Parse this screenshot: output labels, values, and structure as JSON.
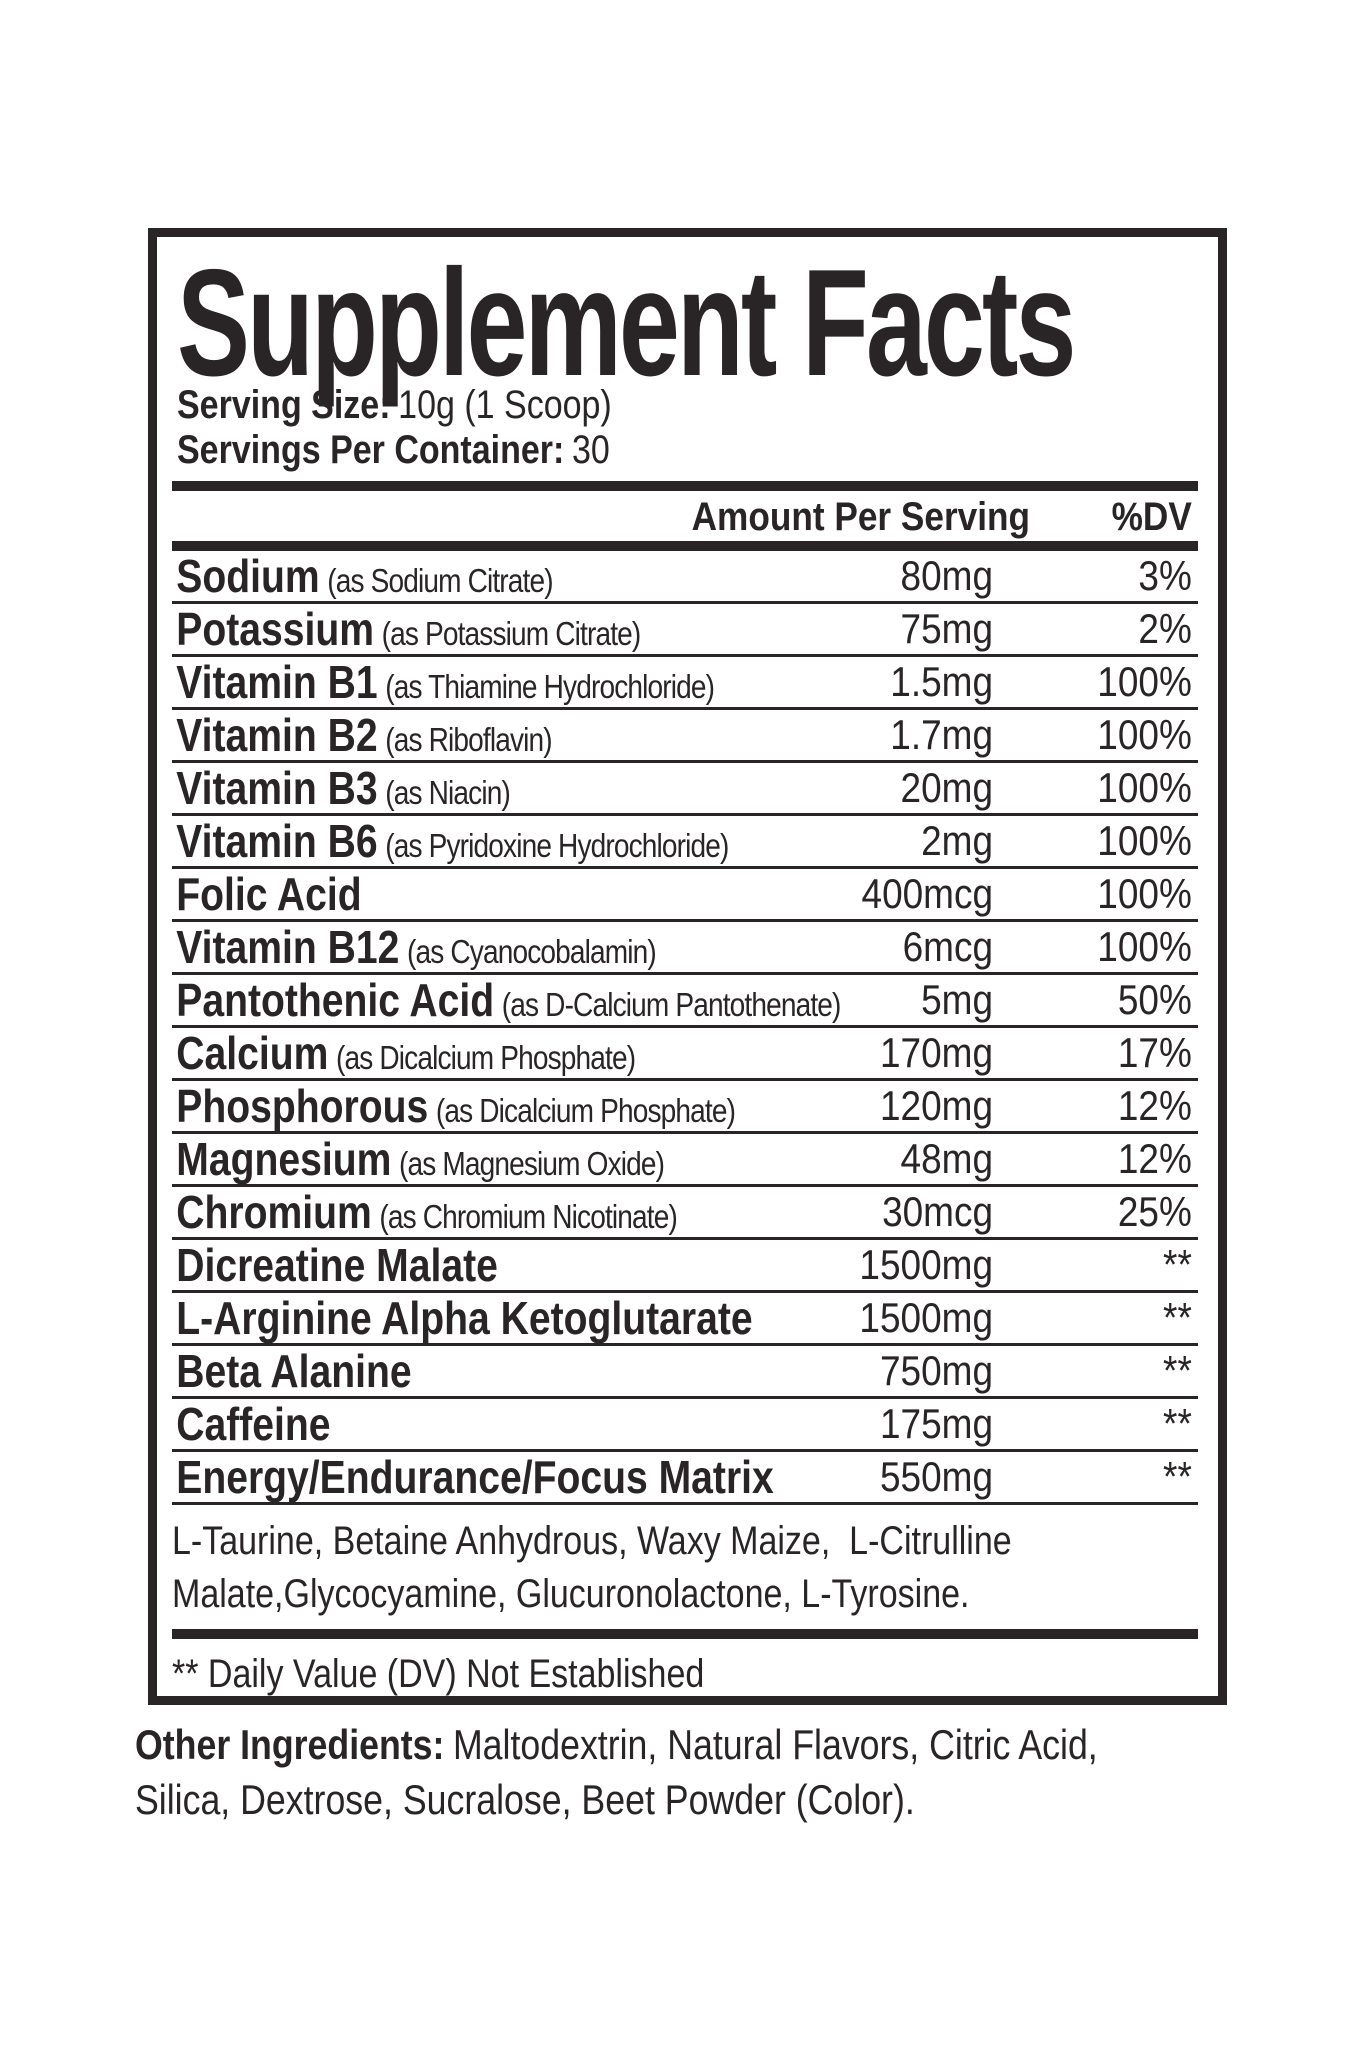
{
  "label": {
    "title": "Supplement Facts",
    "serving_size_label": "Serving Size:",
    "serving_size_value": "10g (1 Scoop)",
    "servings_per_container_label": "Servings Per Container:",
    "servings_per_container_value": "30",
    "header": {
      "amount": "Amount Per Serving",
      "dv": "%DV"
    },
    "rows": [
      {
        "name": "Sodium",
        "desc": "(as Sodium Citrate)",
        "amount": "80mg",
        "dv": "3%"
      },
      {
        "name": "Potassium",
        "desc": "(as Potassium Citrate)",
        "amount": "75mg",
        "dv": "2%"
      },
      {
        "name": "Vitamin B1",
        "desc": "(as Thiamine Hydrochloride)",
        "amount": "1.5mg",
        "dv": "100%"
      },
      {
        "name": "Vitamin B2",
        "desc": "(as Riboflavin)",
        "amount": "1.7mg",
        "dv": "100%"
      },
      {
        "name": "Vitamin B3",
        "desc": "(as Niacin)",
        "amount": "20mg",
        "dv": "100%"
      },
      {
        "name": "Vitamin B6",
        "desc": "(as Pyridoxine Hydrochloride)",
        "amount": "2mg",
        "dv": "100%"
      },
      {
        "name": "Folic Acid",
        "desc": "",
        "amount": "400mcg",
        "dv": "100%"
      },
      {
        "name": "Vitamin B12",
        "desc": "(as Cyanocobalamin)",
        "amount": "6mcg",
        "dv": "100%"
      },
      {
        "name": "Pantothenic Acid",
        "desc": "(as D-Calcium Pantothenate)",
        "amount": "5mg",
        "dv": "50%"
      },
      {
        "name": "Calcium",
        "desc": "(as Dicalcium Phosphate)",
        "amount": "170mg",
        "dv": "17%"
      },
      {
        "name": "Phosphorous",
        "desc": "(as Dicalcium Phosphate)",
        "amount": "120mg",
        "dv": "12%"
      },
      {
        "name": "Magnesium",
        "desc": "(as Magnesium Oxide)",
        "amount": "48mg",
        "dv": "12%"
      },
      {
        "name": "Chromium",
        "desc": "(as Chromium Nicotinate)",
        "amount": "30mcg",
        "dv": "25%"
      },
      {
        "name": "Dicreatine Malate",
        "desc": "",
        "amount": "1500mg",
        "dv": "**"
      },
      {
        "name": "L-Arginine Alpha Ketoglutarate",
        "desc": "",
        "amount": "1500mg",
        "dv": "**"
      },
      {
        "name": "Beta Alanine",
        "desc": "",
        "amount": "750mg",
        "dv": "**"
      },
      {
        "name": "Caffeine",
        "desc": "",
        "amount": "175mg",
        "dv": "**"
      },
      {
        "name": "Energy/Endurance/Focus Matrix",
        "desc": "",
        "amount": "550mg",
        "dv": "**"
      }
    ],
    "blend_line1": "L-Taurine, Betaine Anhydrous, Waxy Maize,  L-Citrulline",
    "blend_line2": "Malate,Glycocyamine, Glucuronolactone, L-Tyrosine.",
    "footnote": "** Daily Value (DV) Not Established"
  },
  "other_ingredients": {
    "label": "Other Ingredients:",
    "line1": "Maltodextrin, Natural Flavors, Citric Acid,",
    "line2": "Silica, Dextrose, Sucralose, Beet Powder (Color)."
  },
  "colors": {
    "ink": "#292527",
    "background": "#ffffff"
  }
}
